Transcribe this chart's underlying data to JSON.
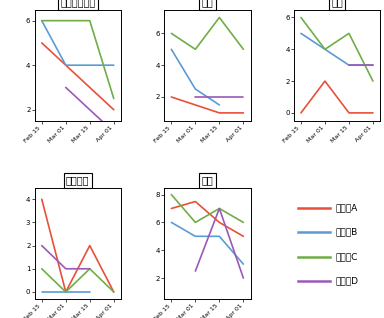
{
  "x_labels": [
    "Feb 15",
    "Mar 01",
    "Mar 15",
    "Apr 01"
  ],
  "x_positions": [
    0,
    1,
    2,
    3
  ],
  "subplots": [
    {
      "title": "思考力の低下",
      "ylim": [
        1.5,
        6.5
      ],
      "yticks": [
        2,
        4,
        6
      ],
      "series": {
        "A": [
          5.0,
          4.0,
          3.0,
          2.0
        ],
        "B": [
          6.0,
          4.0,
          4.0,
          4.0
        ],
        "C": [
          6.0,
          6.0,
          6.0,
          2.5
        ],
        "D": [
          null,
          3.0,
          2.0,
          1.0
        ]
      }
    },
    {
      "title": "うつ",
      "ylim": [
        0.5,
        7.5
      ],
      "yticks": [
        2,
        4,
        6
      ],
      "series": {
        "A": [
          2.0,
          1.5,
          1.0,
          1.0
        ],
        "B": [
          5.0,
          2.5,
          1.5,
          null
        ],
        "C": [
          6.0,
          5.0,
          7.0,
          5.0
        ],
        "D": [
          null,
          2.0,
          2.0,
          2.0
        ]
      }
    },
    {
      "title": "不眠",
      "ylim": [
        -0.5,
        6.5
      ],
      "yticks": [
        0,
        2,
        4,
        6
      ],
      "series": {
        "A": [
          0.0,
          2.0,
          0.0,
          0.0
        ],
        "B": [
          5.0,
          4.0,
          3.0,
          3.0
        ],
        "C": [
          6.0,
          4.0,
          5.0,
          2.0
        ],
        "D": [
          null,
          null,
          3.0,
          3.0
        ]
      }
    },
    {
      "title": "息苦しさ",
      "ylim": [
        -0.3,
        4.5
      ],
      "yticks": [
        0,
        1,
        2,
        3,
        4
      ],
      "series": {
        "A": [
          4.0,
          0.0,
          2.0,
          0.0
        ],
        "B": [
          0.0,
          0.0,
          0.0,
          null
        ],
        "C": [
          1.0,
          0.0,
          1.0,
          0.0
        ],
        "D": [
          2.0,
          1.0,
          1.0,
          null
        ]
      }
    },
    {
      "title": "疲労",
      "ylim": [
        0.5,
        8.5
      ],
      "yticks": [
        2,
        4,
        6,
        8
      ],
      "series": {
        "A": [
          7.0,
          7.5,
          6.0,
          5.0
        ],
        "B": [
          6.0,
          5.0,
          5.0,
          3.0
        ],
        "C": [
          8.0,
          6.0,
          7.0,
          6.0
        ],
        "D": [
          null,
          2.5,
          7.0,
          2.0
        ]
      }
    }
  ],
  "colors": {
    "A": "#e8503a",
    "B": "#5b9bd5",
    "C": "#70ad47",
    "D": "#9b59b6"
  },
  "legend_labels": {
    "A": "参加者A",
    "B": "参加者B",
    "C": "参加者C",
    "D": "参加者D"
  },
  "figsize": [
    3.84,
    3.18
  ],
  "dpi": 100
}
